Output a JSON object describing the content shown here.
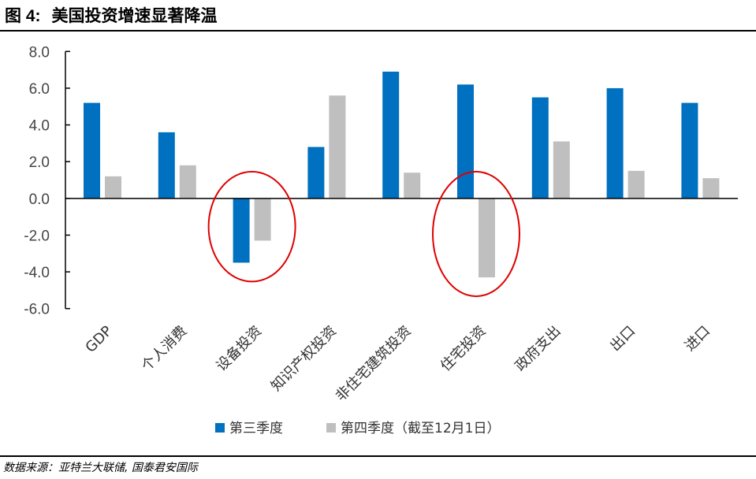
{
  "header": {
    "figure_number": "图 4:",
    "title": "美国投资增速显著降温"
  },
  "source": "数据来源：亚特兰大联储, 国泰君安国际",
  "colors": {
    "q3": "#0070C0",
    "q4": "#BFBFBF",
    "highlight": "#E00000",
    "axis": "#000000"
  },
  "chart_data": {
    "type": "bar",
    "title": "美国投资增速显著降温",
    "xlabel": "",
    "ylabel": "",
    "ylim": [
      -6,
      8
    ],
    "yticks": [
      8,
      6,
      4,
      2,
      0,
      -2,
      -4,
      -6
    ],
    "ytick_labels": [
      "8.0",
      "6.0",
      "4.0",
      "2.0",
      "0.0",
      "-2.0",
      "-4.0",
      "-6.0"
    ],
    "grid": false,
    "legend_position": "bottom",
    "categories": [
      "GDP",
      "个人消费",
      "设备投资",
      "知识产权投资",
      "非住宅建筑投资",
      "住宅投资",
      "政府支出",
      "出口",
      "进口"
    ],
    "series": [
      {
        "name": "第三季度",
        "values": [
          5.2,
          3.6,
          -3.5,
          2.8,
          6.9,
          6.2,
          5.5,
          6.0,
          5.2
        ]
      },
      {
        "name": "第四季度（截至12月1日）",
        "values": [
          1.2,
          1.8,
          -2.3,
          5.6,
          1.4,
          -4.3,
          3.1,
          1.5,
          1.1
        ]
      }
    ],
    "highlighted_categories": [
      "设备投资",
      "住宅投资"
    ]
  }
}
